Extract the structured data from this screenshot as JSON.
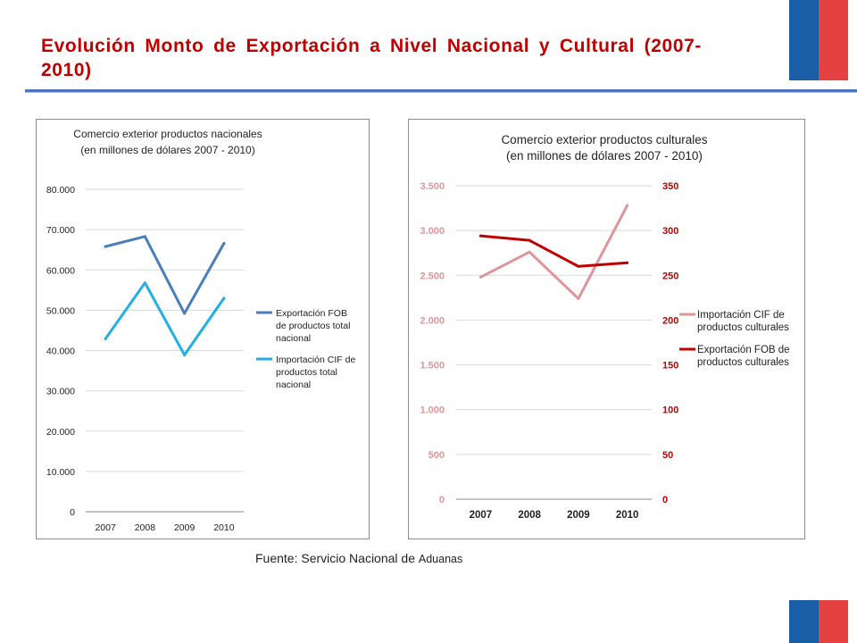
{
  "header": {
    "title": "Evolución Monto de Exportación a Nivel Nacional y Cultural (2007-2010)"
  },
  "colors": {
    "flag_blue": "#1b5ea8",
    "flag_red": "#e64141",
    "title_red": "#c00000",
    "rule_blue": "#4f77bd"
  },
  "source": {
    "prefix": "Fuente: Servicio Nacional de ",
    "suffix": "Aduanas"
  },
  "chart_data": [
    {
      "type": "line",
      "title": "Comercio exterior productos nacionales",
      "subtitle": "(en millones de dólares 2007 - 2010)",
      "categories": [
        "2007",
        "2008",
        "2009",
        "2010"
      ],
      "ylim": [
        0,
        80000
      ],
      "yticks": [
        {
          "value": 0,
          "label": "0"
        },
        {
          "value": 10000,
          "label": "10.000"
        },
        {
          "value": 20000,
          "label": "20.000"
        },
        {
          "value": 30000,
          "label": "30.000"
        },
        {
          "value": 40000,
          "label": "40.000"
        },
        {
          "value": 50000,
          "label": "50.000"
        },
        {
          "value": 60000,
          "label": "60.000"
        },
        {
          "value": 70000,
          "label": "70.000"
        },
        {
          "value": 80000,
          "label": "80.000"
        }
      ],
      "grid": true,
      "legend_position": "right",
      "series": [
        {
          "name_lines": [
            "Exportación FOB",
            "de productos total",
            "nacional"
          ],
          "color": "#4a7ebb",
          "values": [
            65800,
            68300,
            49200,
            66600
          ]
        },
        {
          "name_lines": [
            "Importación CIF de",
            "productos total",
            "nacional"
          ],
          "color": "#22aee8",
          "values": [
            42900,
            56800,
            38900,
            53000
          ]
        }
      ]
    },
    {
      "type": "line",
      "title": "Comercio exterior productos culturales",
      "subtitle": "(en millones de dólares 2007 - 2010)",
      "categories": [
        "2007",
        "2008",
        "2009",
        "2010"
      ],
      "ylim_left": [
        0,
        3500
      ],
      "ylim_right": [
        0,
        350
      ],
      "yticks_left": [
        {
          "value": 0,
          "label": "0"
        },
        {
          "value": 500,
          "label": "500"
        },
        {
          "value": 1000,
          "label": "1.000"
        },
        {
          "value": 1500,
          "label": "1.500"
        },
        {
          "value": 2000,
          "label": "2.000"
        },
        {
          "value": 2500,
          "label": "2.500"
        },
        {
          "value": 3000,
          "label": "3.000"
        },
        {
          "value": 3500,
          "label": "3.500"
        }
      ],
      "yticks_right": [
        {
          "value": 0,
          "label": "0"
        },
        {
          "value": 50,
          "label": "50"
        },
        {
          "value": 100,
          "label": "100"
        },
        {
          "value": 150,
          "label": "150"
        },
        {
          "value": 200,
          "label": "200"
        },
        {
          "value": 250,
          "label": "250"
        },
        {
          "value": 300,
          "label": "300"
        },
        {
          "value": 350,
          "label": "350"
        }
      ],
      "grid": true,
      "legend_position": "right",
      "series": [
        {
          "name_lines": [
            "Importación CIF de",
            "productos culturales"
          ],
          "color": "#e0959a",
          "axis": "left",
          "values": [
            2480,
            2760,
            2240,
            3280
          ]
        },
        {
          "name_lines": [
            "Exportación FOB de",
            "productos culturales"
          ],
          "color": "#c00000",
          "axis": "right",
          "values": [
            294,
            289,
            260,
            264
          ]
        }
      ]
    }
  ]
}
